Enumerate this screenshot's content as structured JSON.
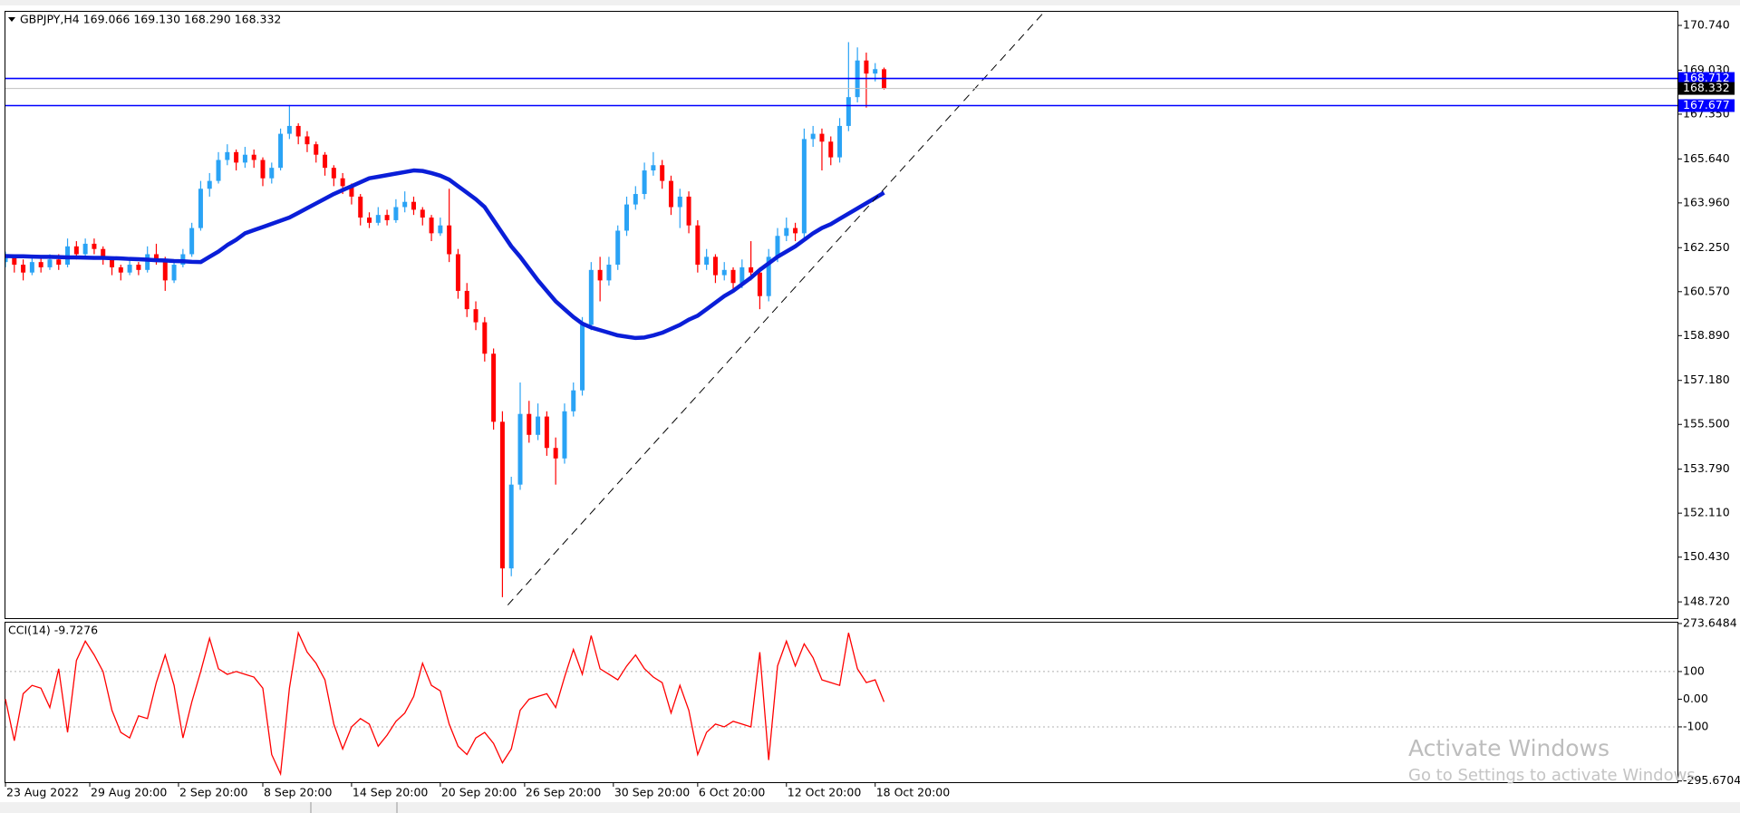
{
  "chart_data": {
    "type": "candlestick",
    "header": "GBPJPY,H4  169.066 169.130 168.290 168.332",
    "up_color": "#2aa3f5",
    "down_color": "#ff0000",
    "ohlc": [
      [
        161.7,
        162.1,
        161.5,
        161.9
      ],
      [
        161.9,
        162.0,
        161.3,
        161.6
      ],
      [
        161.6,
        161.8,
        161.0,
        161.3
      ],
      [
        161.3,
        161.9,
        161.2,
        161.7
      ],
      [
        161.7,
        161.9,
        161.3,
        161.5
      ],
      [
        161.5,
        162.0,
        161.4,
        161.8
      ],
      [
        161.8,
        162.0,
        161.4,
        161.6
      ],
      [
        161.6,
        162.6,
        161.5,
        162.3
      ],
      [
        162.3,
        162.5,
        161.8,
        162.0
      ],
      [
        162.0,
        162.6,
        161.9,
        162.4
      ],
      [
        162.4,
        162.6,
        162.0,
        162.2
      ],
      [
        162.2,
        162.3,
        161.6,
        161.8
      ],
      [
        161.8,
        161.9,
        161.2,
        161.5
      ],
      [
        161.5,
        161.6,
        161.0,
        161.3
      ],
      [
        161.3,
        161.8,
        161.2,
        161.6
      ],
      [
        161.6,
        161.7,
        161.2,
        161.4
      ],
      [
        161.4,
        162.3,
        161.3,
        162.0
      ],
      [
        162.0,
        162.4,
        161.6,
        161.8
      ],
      [
        161.8,
        161.9,
        160.6,
        161.0
      ],
      [
        161.0,
        161.8,
        160.9,
        161.6
      ],
      [
        161.6,
        162.2,
        161.5,
        162.0
      ],
      [
        162.0,
        163.2,
        161.9,
        163.0
      ],
      [
        163.0,
        164.8,
        162.9,
        164.5
      ],
      [
        164.5,
        165.1,
        164.2,
        164.8
      ],
      [
        164.8,
        165.9,
        164.7,
        165.6
      ],
      [
        165.6,
        166.2,
        165.4,
        165.9
      ],
      [
        165.9,
        166.0,
        165.2,
        165.5
      ],
      [
        165.5,
        166.1,
        165.3,
        165.8
      ],
      [
        165.8,
        166.0,
        165.3,
        165.6
      ],
      [
        165.6,
        165.7,
        164.6,
        164.9
      ],
      [
        164.9,
        165.5,
        164.7,
        165.3
      ],
      [
        165.3,
        166.8,
        165.2,
        166.6
      ],
      [
        166.6,
        167.7,
        166.4,
        166.9
      ],
      [
        166.9,
        167.0,
        166.2,
        166.5
      ],
      [
        166.5,
        166.7,
        165.9,
        166.2
      ],
      [
        166.2,
        166.3,
        165.5,
        165.8
      ],
      [
        165.8,
        165.9,
        165.0,
        165.3
      ],
      [
        165.3,
        165.4,
        164.6,
        164.9
      ],
      [
        164.9,
        165.1,
        164.3,
        164.6
      ],
      [
        164.6,
        164.7,
        163.9,
        164.2
      ],
      [
        164.2,
        164.3,
        163.1,
        163.4
      ],
      [
        163.4,
        163.6,
        163.0,
        163.2
      ],
      [
        163.2,
        163.8,
        163.1,
        163.5
      ],
      [
        163.5,
        163.7,
        163.1,
        163.3
      ],
      [
        163.3,
        164.1,
        163.2,
        163.8
      ],
      [
        163.8,
        164.4,
        163.6,
        164.0
      ],
      [
        164.0,
        164.2,
        163.5,
        163.7
      ],
      [
        163.7,
        163.8,
        163.1,
        163.4
      ],
      [
        163.4,
        163.5,
        162.5,
        162.8
      ],
      [
        162.8,
        163.4,
        162.7,
        163.1
      ],
      [
        163.1,
        164.5,
        161.7,
        162.0
      ],
      [
        162.0,
        162.2,
        160.3,
        160.6
      ],
      [
        160.6,
        160.9,
        159.6,
        159.9
      ],
      [
        159.9,
        160.2,
        159.1,
        159.4
      ],
      [
        159.4,
        159.6,
        157.9,
        158.2
      ],
      [
        158.2,
        158.4,
        155.3,
        155.6
      ],
      [
        155.6,
        156.0,
        148.9,
        150.0
      ],
      [
        150.0,
        153.5,
        149.7,
        153.2
      ],
      [
        153.2,
        157.1,
        153.0,
        155.9
      ],
      [
        155.9,
        156.4,
        154.8,
        155.1
      ],
      [
        155.1,
        156.3,
        154.9,
        155.8
      ],
      [
        155.8,
        156.0,
        154.3,
        154.6
      ],
      [
        154.6,
        155.0,
        153.2,
        154.2
      ],
      [
        154.2,
        156.3,
        154.0,
        156.0
      ],
      [
        156.0,
        157.1,
        155.8,
        156.8
      ],
      [
        156.8,
        159.6,
        156.6,
        159.3
      ],
      [
        159.3,
        161.7,
        159.1,
        161.4
      ],
      [
        161.4,
        161.9,
        160.2,
        161.0
      ],
      [
        161.0,
        161.9,
        160.8,
        161.6
      ],
      [
        161.6,
        163.1,
        161.4,
        162.9
      ],
      [
        162.9,
        164.2,
        162.7,
        163.9
      ],
      [
        163.9,
        164.6,
        163.7,
        164.3
      ],
      [
        164.3,
        165.5,
        164.1,
        165.2
      ],
      [
        165.2,
        165.9,
        165.0,
        165.4
      ],
      [
        165.4,
        165.6,
        164.5,
        164.8
      ],
      [
        164.8,
        165.0,
        163.5,
        163.8
      ],
      [
        163.8,
        164.5,
        163.0,
        164.2
      ],
      [
        164.2,
        164.4,
        162.8,
        163.1
      ],
      [
        163.1,
        163.3,
        161.3,
        161.6
      ],
      [
        161.6,
        162.2,
        161.4,
        161.9
      ],
      [
        161.9,
        162.0,
        160.9,
        161.2
      ],
      [
        161.2,
        161.7,
        161.0,
        161.4
      ],
      [
        161.4,
        161.5,
        160.6,
        160.9
      ],
      [
        160.9,
        161.8,
        160.7,
        161.5
      ],
      [
        161.5,
        162.5,
        161.0,
        161.3
      ],
      [
        161.3,
        161.5,
        159.9,
        160.4
      ],
      [
        160.4,
        162.2,
        160.2,
        161.9
      ],
      [
        161.9,
        163.0,
        161.7,
        162.7
      ],
      [
        162.7,
        163.4,
        162.5,
        163.0
      ],
      [
        163.0,
        163.2,
        162.5,
        162.8
      ],
      [
        162.8,
        166.8,
        162.6,
        166.4
      ],
      [
        166.4,
        166.9,
        166.1,
        166.6
      ],
      [
        166.6,
        166.8,
        165.2,
        166.3
      ],
      [
        166.3,
        166.5,
        165.4,
        165.7
      ],
      [
        165.7,
        167.2,
        165.5,
        166.9
      ],
      [
        166.9,
        170.1,
        166.7,
        168.0
      ],
      [
        168.0,
        169.9,
        167.8,
        169.4
      ],
      [
        169.4,
        169.7,
        167.6,
        168.9
      ],
      [
        168.9,
        169.3,
        168.6,
        169.07
      ],
      [
        169.066,
        169.13,
        168.29,
        168.332
      ]
    ],
    "ma": {
      "color": "#0a1ed8",
      "values": [
        161.93,
        161.92,
        161.92,
        161.91,
        161.9,
        161.9,
        161.89,
        161.88,
        161.88,
        161.87,
        161.86,
        161.86,
        161.85,
        161.84,
        161.82,
        161.81,
        161.79,
        161.77,
        161.76,
        161.74,
        161.73,
        161.71,
        161.7,
        161.9,
        162.1,
        162.35,
        162.55,
        162.8,
        162.92,
        163.04,
        163.16,
        163.28,
        163.4,
        163.58,
        163.76,
        163.94,
        164.12,
        164.3,
        164.45,
        164.6,
        164.75,
        164.9,
        164.96,
        165.02,
        165.08,
        165.14,
        165.2,
        165.18,
        165.1,
        165.0,
        164.85,
        164.6,
        164.35,
        164.1,
        163.8,
        163.3,
        162.8,
        162.3,
        161.9,
        161.45,
        161.0,
        160.6,
        160.2,
        159.9,
        159.6,
        159.35,
        159.2,
        159.1,
        159.0,
        158.9,
        158.85,
        158.8,
        158.82,
        158.9,
        159.0,
        159.15,
        159.3,
        159.5,
        159.65,
        159.9,
        160.15,
        160.4,
        160.6,
        160.85,
        161.1,
        161.4,
        161.65,
        161.9,
        162.1,
        162.3,
        162.55,
        162.8,
        163.0,
        163.15,
        163.35,
        163.55,
        163.75,
        163.95,
        164.15,
        164.35
      ]
    },
    "xlim": [
      0,
      188.4
    ],
    "xticks": [
      {
        "value": 0,
        "label": "23 Aug 2022"
      },
      {
        "value": 9.5,
        "label": "29 Aug 20:00"
      },
      {
        "value": 19.5,
        "label": "2 Sep 20:00"
      },
      {
        "value": 29,
        "label": "8 Sep 20:00"
      },
      {
        "value": 39,
        "label": "14 Sep 20:00"
      },
      {
        "value": 49,
        "label": "20 Sep 20:00"
      },
      {
        "value": 58.5,
        "label": "26 Sep 20:00"
      },
      {
        "value": 68.5,
        "label": "30 Sep 20:00"
      },
      {
        "value": 78,
        "label": "6 Oct 20:00"
      },
      {
        "value": 88,
        "label": "12 Oct 20:00"
      },
      {
        "value": 98,
        "label": "18 Oct 20:00"
      }
    ],
    "ylim": [
      148.1,
      171.26
    ],
    "yticks": [
      {
        "value": 170.74,
        "label": "170.740"
      },
      {
        "value": 169.03,
        "label": "169.030"
      },
      {
        "value": 167.35,
        "label": "167.350"
      },
      {
        "value": 165.64,
        "label": "165.640"
      },
      {
        "value": 163.96,
        "label": "163.960"
      },
      {
        "value": 162.25,
        "label": "162.250"
      },
      {
        "value": 160.57,
        "label": "160.570"
      },
      {
        "value": 158.89,
        "label": "158.890"
      },
      {
        "value": 157.18,
        "label": "157.180"
      },
      {
        "value": 155.5,
        "label": "155.500"
      },
      {
        "value": 153.79,
        "label": "153.790"
      },
      {
        "value": 152.11,
        "label": "152.110"
      },
      {
        "value": 150.43,
        "label": "150.430"
      },
      {
        "value": 148.72,
        "label": "148.720"
      }
    ],
    "levels": [
      {
        "value": 168.712,
        "color": "#0000ff"
      },
      {
        "value": 167.677,
        "color": "#0000ff"
      }
    ],
    "last_price": 168.332,
    "trendline": {
      "x": [
        56.6,
        116.9
      ],
      "y": [
        148.6,
        171.2
      ]
    }
  },
  "indicator": {
    "type": "line",
    "title": "CCI(14) -9.7276",
    "color": "#ff0000",
    "values": [
      0,
      -150,
      20,
      50,
      40,
      -30,
      110,
      -120,
      140,
      210,
      160,
      100,
      -40,
      -120,
      -140,
      -60,
      -70,
      60,
      160,
      50,
      -140,
      -10,
      100,
      220,
      110,
      90,
      100,
      90,
      80,
      40,
      -200,
      -270,
      40,
      240,
      170,
      130,
      70,
      -90,
      -180,
      -100,
      -70,
      -90,
      -170,
      -130,
      -80,
      -50,
      10,
      130,
      50,
      30,
      -90,
      -170,
      -200,
      -140,
      -120,
      -160,
      -230,
      -180,
      -40,
      0,
      10,
      20,
      -30,
      80,
      180,
      90,
      230,
      110,
      90,
      70,
      120,
      160,
      110,
      80,
      60,
      -50,
      50,
      -40,
      -200,
      -120,
      -90,
      -100,
      -80,
      -90,
      -100,
      170,
      -220,
      120,
      210,
      120,
      200,
      150,
      70,
      60,
      50,
      240,
      110,
      60,
      70,
      -9.7276
    ],
    "ylim": [
      -300,
      280
    ],
    "yticks": [
      273.6484,
      100,
      {
        "value": 0,
        "label": "0.00"
      },
      -100,
      -295.6704
    ]
  },
  "watermark": {
    "title": "Activate Windows",
    "subtitle": "Go to Settings to activate Windows."
  }
}
